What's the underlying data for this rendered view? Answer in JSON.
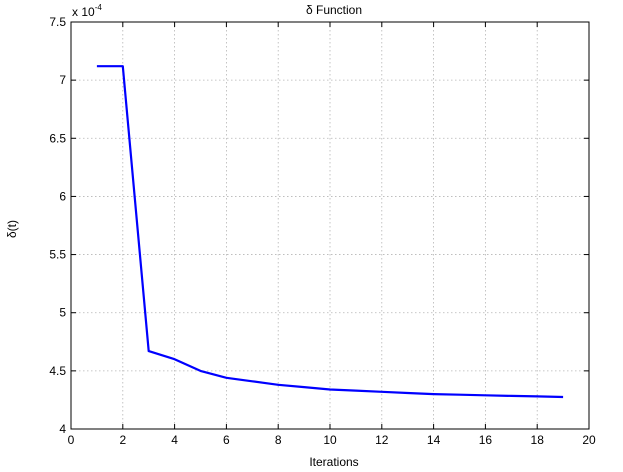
{
  "chart_data": {
    "type": "line",
    "title": "δ Function",
    "xlabel": "Iterations",
    "ylabel": "δ(t)",
    "scale_label": "x 10",
    "scale_exponent": "-4",
    "xlim": [
      0,
      20
    ],
    "ylim": [
      4,
      7.5
    ],
    "xticks": [
      0,
      2,
      4,
      6,
      8,
      10,
      12,
      14,
      16,
      18,
      20
    ],
    "xtick_labels": [
      "0",
      "2",
      "4",
      "6",
      "8",
      "10",
      "12",
      "14",
      "16",
      "18",
      "20"
    ],
    "yticks": [
      4,
      4.5,
      5,
      5.5,
      6,
      6.5,
      7,
      7.5
    ],
    "ytick_labels": [
      "4",
      "4.5",
      "5",
      "5.5",
      "6",
      "6.5",
      "7",
      "7.5"
    ],
    "grid": true,
    "line_color": "#0000ff",
    "series": [
      {
        "x": [
          1,
          2,
          3,
          4,
          5,
          6,
          7,
          8,
          9,
          10,
          11,
          12,
          13,
          14,
          15,
          16,
          17,
          18,
          19
        ],
        "values": [
          7.12,
          7.12,
          4.67,
          4.6,
          4.5,
          4.44,
          4.41,
          4.38,
          4.36,
          4.34,
          4.33,
          4.32,
          4.31,
          4.3,
          4.295,
          4.29,
          4.285,
          4.28,
          4.275
        ]
      }
    ]
  }
}
